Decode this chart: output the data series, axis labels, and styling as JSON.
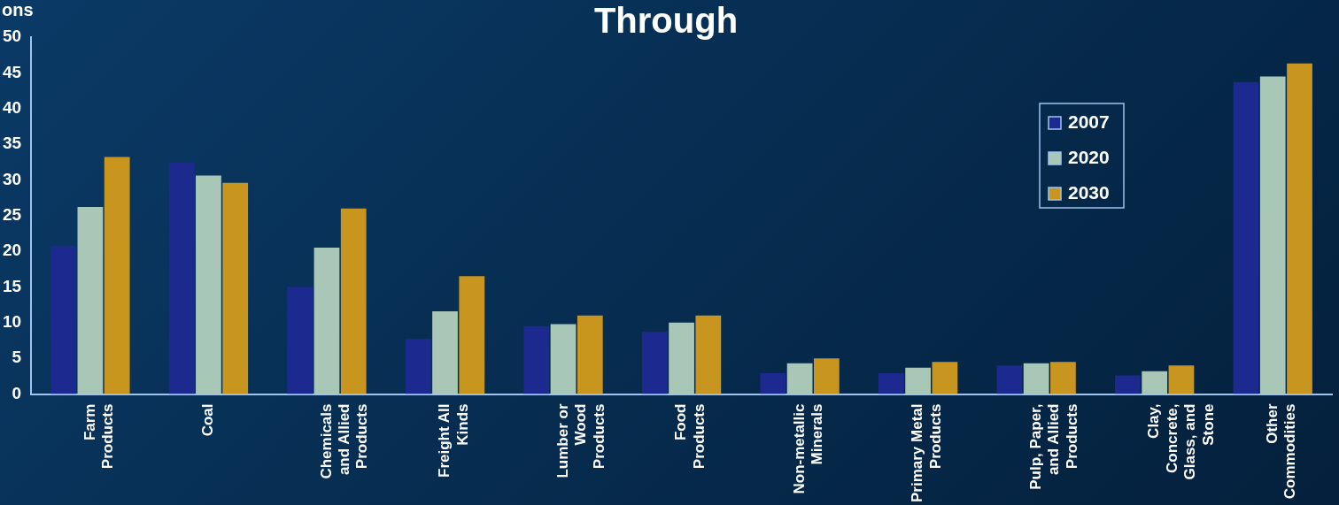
{
  "chart_data": {
    "type": "bar",
    "title": "Through",
    "ylabel": "ons",
    "categories": [
      "Farm\nProducts",
      "Coal",
      "Chemicals\nand Allied\nProducts",
      "Freight All\nKinds",
      "Lumber or\nWood\nProducts",
      "Food\nProducts",
      "Non-metallic\nMinerals",
      "Primary Metal\nProducts",
      "Pulp, Paper,\nand Allied\nProducts",
      "Clay,\nConcrete,\nGlass, and\nStone",
      "Other\nCommodities"
    ],
    "series": [
      {
        "name": "2007",
        "color": "#1c2a90",
        "values": [
          20.7,
          32.4,
          15,
          7.7,
          9.5,
          8.7,
          2.9,
          2.9,
          4,
          2.6,
          43.7
        ]
      },
      {
        "name": "2020",
        "color": "#a9c7b6",
        "values": [
          26.2,
          30.6,
          20.5,
          11.6,
          9.8,
          10,
          4.3,
          3.7,
          4.3,
          3.2,
          44.5
        ]
      },
      {
        "name": "2030",
        "color": "#c8961e",
        "values": [
          33.2,
          29.6,
          26,
          16.5,
          11,
          11,
          5,
          4.5,
          4.5,
          4,
          46.3
        ]
      }
    ],
    "ylim": [
      0,
      50
    ],
    "yticks": [
      0,
      5,
      10,
      15,
      20,
      25,
      30,
      35,
      40,
      45,
      50
    ],
    "grid": false,
    "legend": "top right"
  }
}
